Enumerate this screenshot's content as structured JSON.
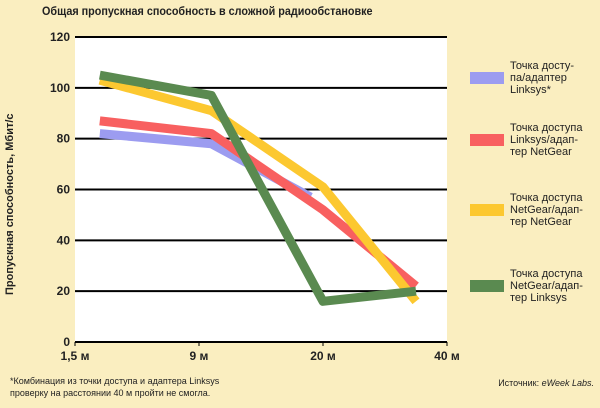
{
  "title": "Общая пропускная способность в сложной радиообстановке",
  "footnote": "*Комбинация из точки доступа и адаптера Linksys\nпроверку на расстоянии 40 м пройти не смогла.",
  "source_prefix": "Источник: ",
  "source_name": "eWeek Labs.",
  "chart_data": {
    "type": "line",
    "ylabel": "Пропускная способность, Мбит/с",
    "xlabel": "",
    "ylim": [
      0,
      120
    ],
    "yticks": [
      "0",
      "20",
      "40",
      "60",
      "80",
      "100",
      "120"
    ],
    "categories": [
      "1,5 м",
      "9 м",
      "20 м",
      "40 м"
    ],
    "grid": "horizontal",
    "legend_position": "right",
    "series": [
      {
        "name": "Точка досту-\nпа/адаптер\nLinksys*",
        "color": "#9c9cf0",
        "points": [
          [
            0.2,
            82
          ],
          [
            1.1,
            78
          ],
          [
            1.9,
            57
          ]
        ]
      },
      {
        "name": "Точка доступа\nLinksys/адап-\nтер NetGear",
        "color": "#f86060",
        "points": [
          [
            0.2,
            87
          ],
          [
            1.1,
            82
          ],
          [
            2.0,
            52
          ],
          [
            2.75,
            22
          ]
        ]
      },
      {
        "name": "Точка доступа\nNetGear/адап-\nтер NetGear",
        "color": "#fcc830",
        "points": [
          [
            0.2,
            103
          ],
          [
            1.1,
            91
          ],
          [
            2.0,
            61
          ],
          [
            2.75,
            16
          ]
        ]
      },
      {
        "name": "Точка доступа\nNetGear/адап-\nтер Linksys",
        "color": "#5a8a50",
        "points": [
          [
            0.2,
            105
          ],
          [
            1.1,
            97
          ],
          [
            2.0,
            16
          ],
          [
            2.75,
            20
          ]
        ]
      }
    ]
  }
}
